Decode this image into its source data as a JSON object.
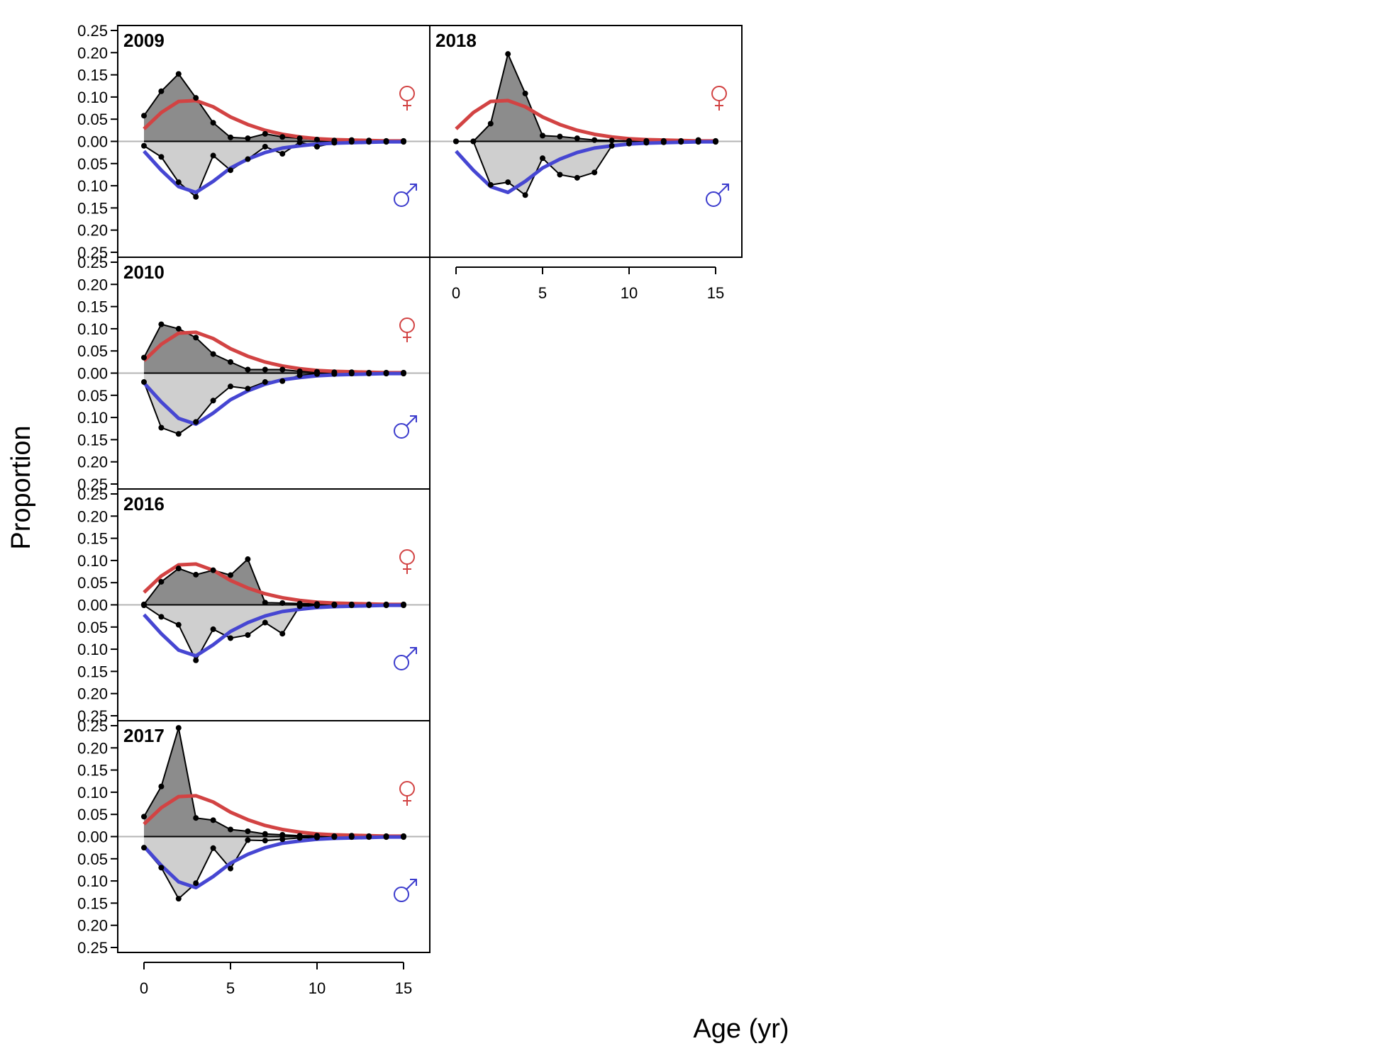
{
  "axis_titles": {
    "y": "Proportion",
    "x": "Age (yr)"
  },
  "colors": {
    "female_fit": "#d24343",
    "male_fit": "#4646d2",
    "female_fill": "#8c8c8c",
    "male_fill": "#cfcfcf",
    "female_symbol": "#d24343",
    "male_symbol": "#3c3ccd"
  },
  "symbols": {
    "female": "female-symbol-icon",
    "male": "male-symbol-icon"
  },
  "chart_data": {
    "type": "area",
    "xlabel": "Age (yr)",
    "ylabel": "Proportion",
    "xlim": [
      0,
      15
    ],
    "ylim": [
      -0.25,
      0.25
    ],
    "x_ticks": [
      0,
      5,
      10,
      15
    ],
    "y_ticks": [
      0.25,
      0.2,
      0.15,
      0.1,
      0.05,
      0.0,
      0.05,
      0.1,
      0.15,
      0.2,
      0.25
    ],
    "y_tick_labels": [
      "0.25",
      "0.20",
      "0.15",
      "0.10",
      "0.05",
      "0.00",
      "0.05",
      "0.10",
      "0.15",
      "0.20",
      "0.25"
    ],
    "x_tick_labels": [
      "0",
      "5",
      "10",
      "15"
    ],
    "ages": [
      0,
      1,
      2,
      3,
      4,
      5,
      6,
      7,
      8,
      9,
      10,
      11,
      12,
      13,
      14,
      15
    ],
    "fit_female": [
      0.028,
      0.065,
      0.09,
      0.092,
      0.078,
      0.055,
      0.038,
      0.025,
      0.016,
      0.01,
      0.006,
      0.004,
      0.003,
      0.002,
      0.001,
      0.001
    ],
    "fit_male": [
      0.022,
      0.065,
      0.102,
      0.115,
      0.09,
      0.06,
      0.04,
      0.025,
      0.015,
      0.01,
      0.006,
      0.004,
      0.003,
      0.002,
      0.001,
      0.001
    ],
    "panels": [
      {
        "year": "2009",
        "col": 0,
        "row": 0,
        "female": [
          0.058,
          0.113,
          0.152,
          0.098,
          0.042,
          0.009,
          0.007,
          0.017,
          0.01,
          0.007,
          0.004,
          0.002,
          0.003,
          0.002,
          0.001,
          0.001
        ],
        "male": [
          0.01,
          0.035,
          0.092,
          0.125,
          0.032,
          0.065,
          0.04,
          0.012,
          0.028,
          0.002,
          0.012,
          0.003,
          0.001,
          0.001,
          0.001,
          0.001
        ]
      },
      {
        "year": "2018",
        "col": 1,
        "row": 0,
        "female": [
          0.0,
          0.0,
          0.04,
          0.197,
          0.108,
          0.013,
          0.011,
          0.007,
          0.003,
          0.002,
          0.001,
          0.001,
          0.001,
          0.001,
          0.003,
          0.001
        ],
        "male": [
          0.0,
          0.0,
          0.098,
          0.092,
          0.121,
          0.038,
          0.075,
          0.082,
          0.07,
          0.01,
          0.005,
          0.003,
          0.002,
          0.001,
          0.001,
          0.001
        ]
      },
      {
        "year": "2010",
        "col": 0,
        "row": 1,
        "female": [
          0.035,
          0.11,
          0.1,
          0.08,
          0.043,
          0.025,
          0.008,
          0.008,
          0.008,
          0.004,
          0.003,
          0.002,
          0.002,
          0.001,
          0.001,
          0.001
        ],
        "male": [
          0.02,
          0.123,
          0.137,
          0.11,
          0.062,
          0.03,
          0.035,
          0.02,
          0.018,
          0.005,
          0.002,
          0.002,
          0.001,
          0.001,
          0.001,
          0.001
        ]
      },
      {
        "year": "2016",
        "col": 0,
        "row": 2,
        "female": [
          0.001,
          0.052,
          0.082,
          0.068,
          0.078,
          0.067,
          0.103,
          0.005,
          0.004,
          0.003,
          0.002,
          0.001,
          0.001,
          0.001,
          0.001,
          0.001
        ],
        "male": [
          0.001,
          0.027,
          0.045,
          0.125,
          0.055,
          0.075,
          0.068,
          0.04,
          0.065,
          0.003,
          0.002,
          0.001,
          0.001,
          0.001,
          0.001,
          0.001
        ]
      },
      {
        "year": "2017",
        "col": 0,
        "row": 3,
        "female": [
          0.045,
          0.113,
          0.245,
          0.042,
          0.037,
          0.016,
          0.012,
          0.006,
          0.004,
          0.002,
          0.002,
          0.001,
          0.002,
          0.001,
          0.001,
          0.001
        ],
        "male": [
          0.025,
          0.07,
          0.14,
          0.105,
          0.026,
          0.072,
          0.008,
          0.009,
          0.006,
          0.003,
          0.002,
          0.001,
          0.001,
          0.001,
          0.001,
          0.001
        ]
      }
    ]
  }
}
